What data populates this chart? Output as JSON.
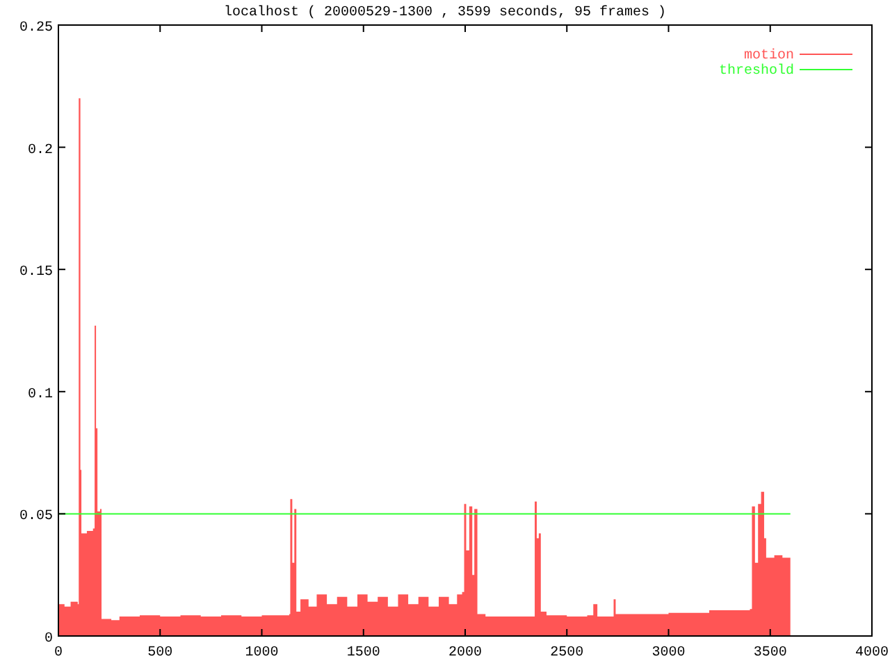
{
  "chart_data": {
    "type": "area",
    "title": "localhost ( 20000529-1300 , 3599 seconds, 95 frames )",
    "xlim": [
      0,
      4000
    ],
    "xticks": [
      0,
      500,
      1000,
      1500,
      2000,
      2500,
      3000,
      3500,
      4000
    ],
    "ylim": [
      0,
      0.25
    ],
    "yticks": [
      0,
      0.05,
      0.1,
      0.15,
      0.2,
      0.25
    ],
    "legend": "top right",
    "grid": false,
    "series": [
      {
        "name": "motion",
        "color": "#ff5555",
        "x": [
          0,
          30,
          60,
          95,
          100,
          108,
          113,
          140,
          170,
          178,
          185,
          192,
          205,
          212,
          260,
          300,
          400,
          500,
          600,
          700,
          800,
          900,
          1000,
          1100,
          1135,
          1140,
          1150,
          1160,
          1170,
          1190,
          1230,
          1270,
          1320,
          1370,
          1420,
          1470,
          1520,
          1570,
          1620,
          1670,
          1720,
          1770,
          1820,
          1870,
          1920,
          1960,
          1985,
          1995,
          2005,
          2020,
          2035,
          2045,
          2060,
          2100,
          2200,
          2300,
          2335,
          2342,
          2352,
          2362,
          2372,
          2400,
          2500,
          2600,
          2630,
          2650,
          2730,
          2740,
          2800,
          2900,
          3000,
          3100,
          3200,
          3300,
          3400,
          3410,
          3425,
          3440,
          3455,
          3470,
          3480,
          3520,
          3560,
          3599
        ],
        "values": [
          0.013,
          0.012,
          0.014,
          0.013,
          0.22,
          0.068,
          0.042,
          0.043,
          0.044,
          0.127,
          0.085,
          0.051,
          0.052,
          0.007,
          0.0065,
          0.008,
          0.0085,
          0.008,
          0.0085,
          0.008,
          0.0085,
          0.008,
          0.0085,
          0.0085,
          0.009,
          0.056,
          0.03,
          0.052,
          0.01,
          0.015,
          0.012,
          0.017,
          0.013,
          0.016,
          0.012,
          0.017,
          0.014,
          0.016,
          0.012,
          0.017,
          0.013,
          0.016,
          0.012,
          0.016,
          0.013,
          0.017,
          0.018,
          0.054,
          0.035,
          0.053,
          0.025,
          0.052,
          0.009,
          0.008,
          0.008,
          0.008,
          0.008,
          0.055,
          0.04,
          0.042,
          0.01,
          0.0085,
          0.008,
          0.0085,
          0.013,
          0.008,
          0.015,
          0.009,
          0.009,
          0.009,
          0.0095,
          0.0095,
          0.0105,
          0.0105,
          0.011,
          0.053,
          0.03,
          0.054,
          0.059,
          0.04,
          0.032,
          0.033,
          0.032,
          0.033
        ]
      },
      {
        "name": "threshold",
        "type": "line",
        "color": "#33ff33",
        "x": [
          0,
          3599
        ],
        "values": [
          0.05,
          0.05
        ]
      }
    ]
  }
}
